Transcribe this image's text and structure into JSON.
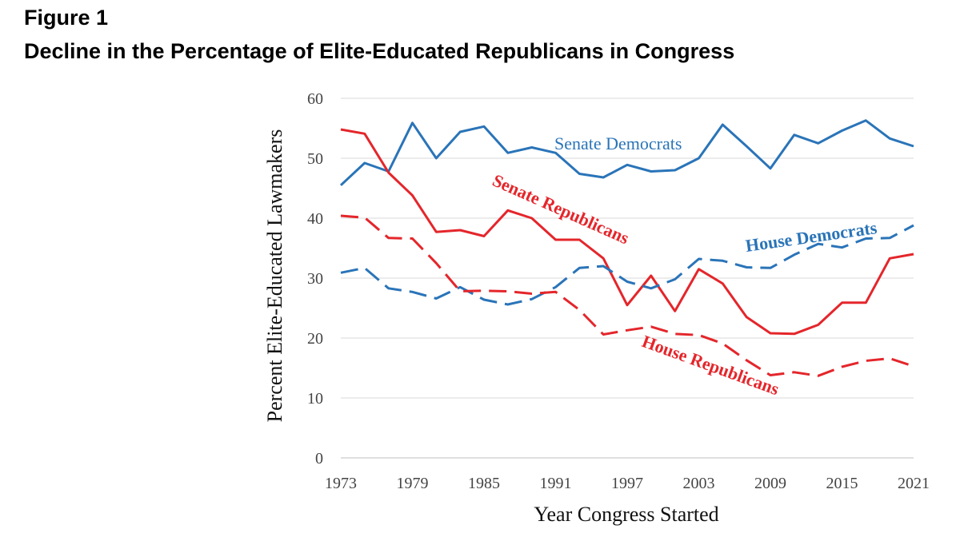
{
  "figure_label": "Figure 1",
  "figure_title": "Decline in the Percentage of Elite-Educated Republicans in Congress",
  "colors": {
    "democrat": "#2a74b8",
    "republican": "#e4262b",
    "grid": "#d9d9d9"
  },
  "chart_data": {
    "type": "line",
    "xlabel": "Year Congress Started",
    "ylabel": "Percent Elite-Educated Lawmakers",
    "xlim": [
      1973,
      2021
    ],
    "ylim": [
      0,
      60
    ],
    "x_ticks": [
      1973,
      1979,
      1985,
      1991,
      1997,
      2003,
      2009,
      2015,
      2021
    ],
    "y_ticks": [
      0,
      10,
      20,
      30,
      40,
      50,
      60
    ],
    "grid": "horizontal",
    "x": [
      1973,
      1975,
      1977,
      1979,
      1981,
      1983,
      1985,
      1987,
      1989,
      1991,
      1993,
      1995,
      1997,
      1999,
      2001,
      2003,
      2005,
      2007,
      2009,
      2011,
      2013,
      2015,
      2017,
      2019,
      2021
    ],
    "series": [
      {
        "name": "Senate Democrats",
        "label": "Senate Democrats",
        "color_key": "democrat",
        "style": "solid",
        "values": [
          45.5,
          49.2,
          47.8,
          55.9,
          50.0,
          54.4,
          55.3,
          50.9,
          51.8,
          50.9,
          47.4,
          46.8,
          48.9,
          47.8,
          48.0,
          50.0,
          55.6,
          52.0,
          48.3,
          53.9,
          52.5,
          54.6,
          56.3,
          53.3,
          52.0
        ]
      },
      {
        "name": "Senate Republicans",
        "label": "Senate Republicans",
        "color_key": "republican",
        "style": "solid",
        "values": [
          54.8,
          54.1,
          47.6,
          43.8,
          37.7,
          38.0,
          37.0,
          41.3,
          40.0,
          36.4,
          36.4,
          33.3,
          25.5,
          30.4,
          24.5,
          31.5,
          29.1,
          23.5,
          20.8,
          20.7,
          22.2,
          25.9,
          25.9,
          33.3,
          34.0
        ]
      },
      {
        "name": "House Democrats",
        "label": "House Democrats",
        "color_key": "democrat",
        "style": "dashed",
        "values": [
          30.9,
          31.7,
          28.3,
          27.7,
          26.6,
          28.5,
          26.4,
          25.6,
          26.5,
          28.5,
          31.7,
          32.0,
          29.4,
          28.3,
          29.8,
          33.2,
          32.9,
          31.8,
          31.7,
          33.9,
          35.7,
          35.1,
          36.6,
          36.7,
          38.8
        ]
      },
      {
        "name": "House Republicans",
        "label": "House Republicans",
        "color_key": "republican",
        "style": "dashed",
        "values": [
          40.4,
          40.1,
          36.7,
          36.6,
          32.5,
          27.8,
          27.9,
          27.8,
          27.4,
          27.7,
          24.7,
          20.6,
          21.3,
          21.9,
          20.7,
          20.5,
          19.1,
          16.3,
          13.8,
          14.3,
          13.7,
          15.2,
          16.2,
          16.6,
          15.3
        ]
      }
    ]
  }
}
